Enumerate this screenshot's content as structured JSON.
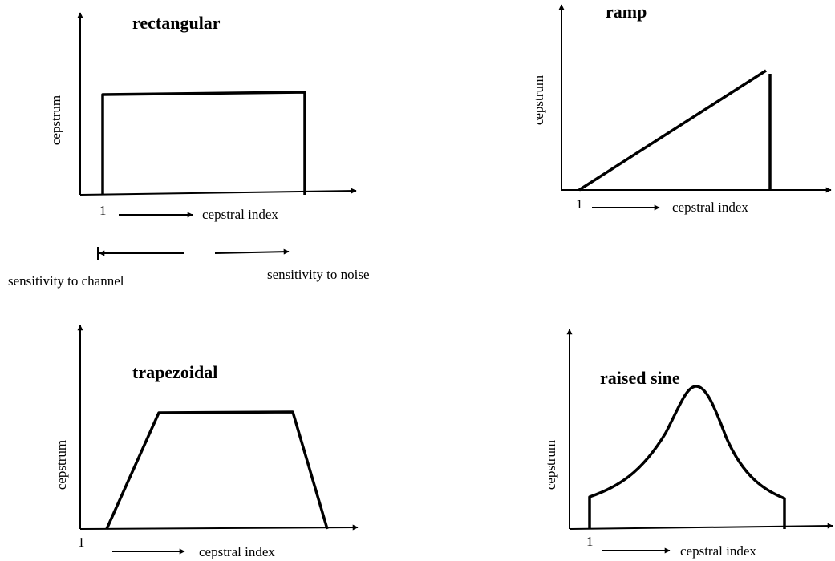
{
  "panels": [
    {
      "title": "rectangular",
      "y_label": "cepstrum",
      "x_label": "cepstral index",
      "origin_label": "1"
    },
    {
      "title": "ramp",
      "y_label": "cepstrum",
      "x_label": "cepstral index",
      "origin_label": "1"
    },
    {
      "title": "trapezoidal",
      "y_label": "cepstrum",
      "x_label": "cepstral index",
      "origin_label": "1"
    },
    {
      "title": "raised sine",
      "y_label": "cepstrum",
      "x_label": "cepstral index",
      "origin_label": "1"
    }
  ],
  "sensitivity": {
    "left": "sensitivity to channel",
    "right": "sensitivity to noise"
  }
}
